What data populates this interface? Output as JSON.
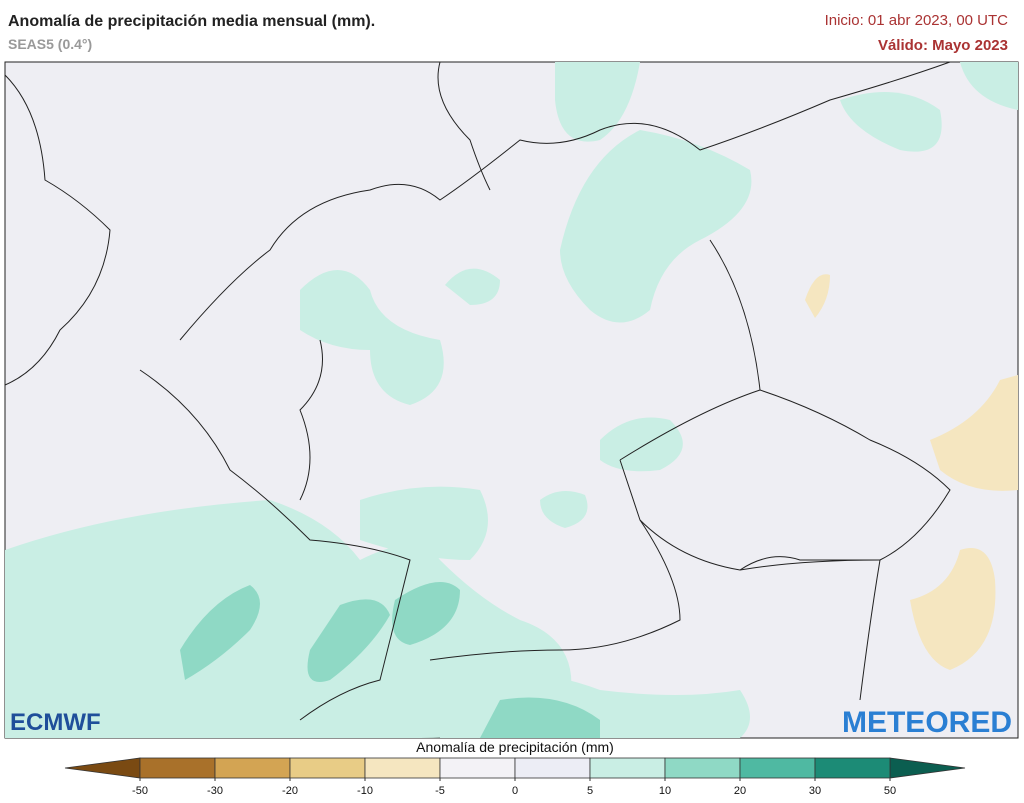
{
  "header": {
    "title": "Anomalía de precipitación media mensual (mm).",
    "model": "SEAS5 (0.4°)",
    "init": "Inicio: 01 abr 2023, 00 UTC",
    "valid": "Válido: Mayo 2023"
  },
  "logos": {
    "left": "ECMWF",
    "right": "METEORED"
  },
  "colorbar": {
    "label": "Anomalía de precipitación (mm)",
    "ticks": [
      -50,
      -30,
      -20,
      -10,
      -5,
      0,
      5,
      10,
      20,
      30,
      50
    ],
    "colors": [
      "#7a4a12",
      "#a9712a",
      "#d3a453",
      "#e8cc86",
      "#f5e6c0",
      "#f3f2f6",
      "#ecedf5",
      "#c9eee4",
      "#8fd9c5",
      "#4fb9a2",
      "#1c8b76",
      "#0b5e50"
    ]
  }
}
